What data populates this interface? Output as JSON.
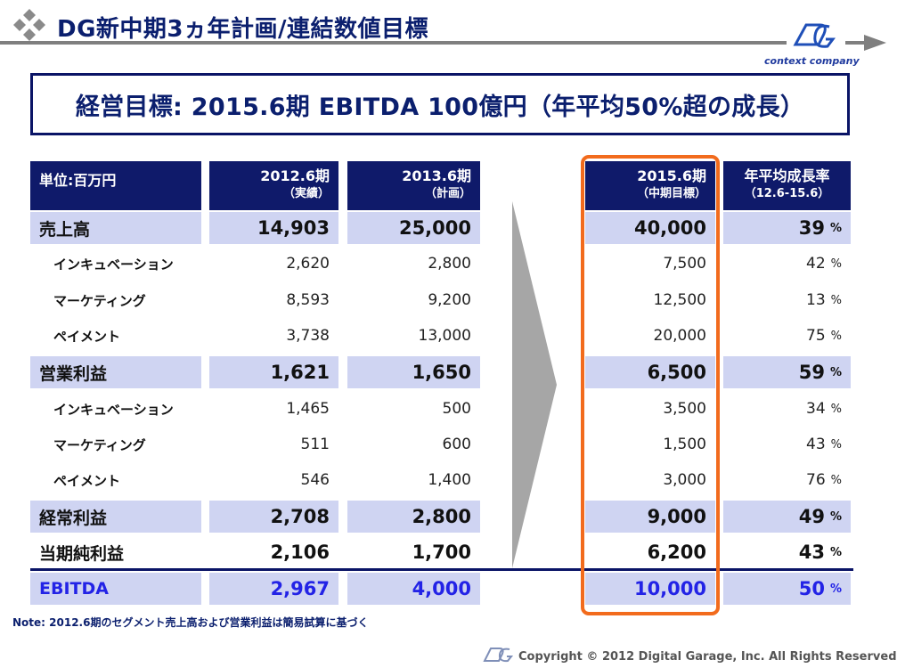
{
  "header": {
    "title": "DG新中期3ヵ年計画/連結数値目標",
    "title_icon": "diamond-cluster-icon",
    "logo_icon": "dg-logo-icon",
    "logo_text": "context company"
  },
  "goal": {
    "text": "経営目標:  2015.6期 EBITDA 100億円（年平均50%超の成長）"
  },
  "table": {
    "columns": [
      {
        "line1": "単位:百万円",
        "line2": ""
      },
      {
        "line1": "2012.6期",
        "line2": "（実績）"
      },
      {
        "line1": "2013.6期",
        "line2": "（計画）"
      },
      {
        "line1": "2015.6期",
        "line2": "（中期目標）"
      },
      {
        "line1": "年平均成長率",
        "line2": "（12.6-15.6）"
      }
    ],
    "rows": [
      {
        "label": "売上高",
        "v2012": "14,903",
        "v2013": "25,000",
        "v2015": "40,000",
        "growth": "39"
      },
      {
        "label": "インキュベーション",
        "v2012": "2,620",
        "v2013": "2,800",
        "v2015": "7,500",
        "growth": "42"
      },
      {
        "label": "マーケティング",
        "v2012": "8,593",
        "v2013": "9,200",
        "v2015": "12,500",
        "growth": "13"
      },
      {
        "label": "ペイメント",
        "v2012": "3,738",
        "v2013": "13,000",
        "v2015": "20,000",
        "growth": "75"
      },
      {
        "label": "営業利益",
        "v2012": "1,621",
        "v2013": "1,650",
        "v2015": "6,500",
        "growth": "59"
      },
      {
        "label": "インキュベーション",
        "v2012": "1,465",
        "v2013": "500",
        "v2015": "3,500",
        "growth": "34"
      },
      {
        "label": "マーケティング",
        "v2012": "511",
        "v2013": "600",
        "v2015": "1,500",
        "growth": "43"
      },
      {
        "label": "ペイメント",
        "v2012": "546",
        "v2013": "1,400",
        "v2015": "3,000",
        "growth": "76"
      },
      {
        "label": "経常利益",
        "v2012": "2,708",
        "v2013": "2,800",
        "v2015": "9,000",
        "growth": "49"
      },
      {
        "label": "当期純利益",
        "v2012": "2,106",
        "v2013": "1,700",
        "v2015": "6,200",
        "growth": "43"
      },
      {
        "label": "EBITDA",
        "v2012": "2,967",
        "v2013": "4,000",
        "v2015": "10,000",
        "growth": "50"
      }
    ],
    "percent_unit": "%"
  },
  "note": "Note: 2012.6期のセグメント売上高および営業利益は簡易試算に基づく",
  "footer": {
    "copyright": "Copyright © 2012 Digital Garage, Inc. All Rights Reserved",
    "logo_icon": "dg-logo-icon"
  },
  "colors": {
    "navy": "#0f1a6a",
    "band": "#cfd4f2",
    "highlight": "#f26b1d",
    "ebitda": "#2323e6",
    "arrow": "#a6a6a6"
  }
}
